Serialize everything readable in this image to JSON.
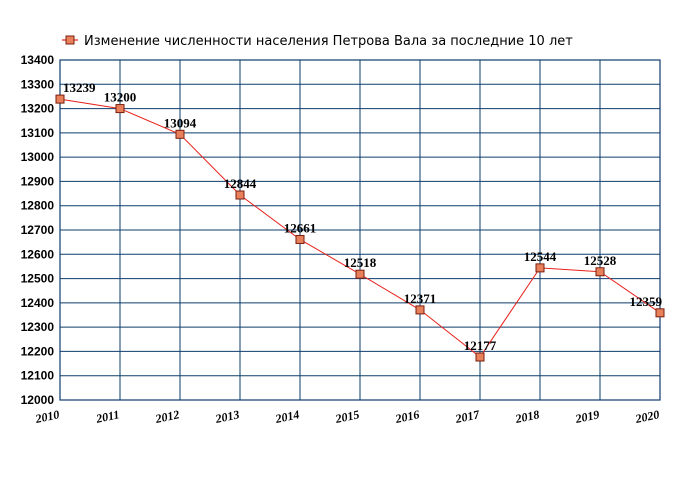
{
  "colors": {
    "line": "#e8211b",
    "marker_fill": "#e8805c",
    "marker_stroke": "#7a1e0e",
    "grid": "#0d3d6b",
    "frame": "#0d3d6b"
  },
  "chart_data": {
    "type": "line",
    "title": "Изменение численности населения Петрова Вала за последние 10 лет",
    "legend_position": "top-left",
    "grid": true,
    "categories": [
      "2010",
      "2011",
      "2012",
      "2013",
      "2014",
      "2015",
      "2016",
      "2017",
      "2018",
      "2019",
      "2020"
    ],
    "series": [
      {
        "name": "Изменение численности населения Петрова Вала за последние 10 лет",
        "values": [
          13239,
          13200,
          13094,
          12844,
          12661,
          12518,
          12371,
          12177,
          12544,
          12528,
          12359
        ]
      }
    ],
    "ylim": [
      12000,
      13400
    ],
    "yticks": [
      "12000",
      "12100",
      "12200",
      "12300",
      "12400",
      "12500",
      "12600",
      "12700",
      "12800",
      "12900",
      "13000",
      "13100",
      "13200",
      "13300",
      "13400"
    ],
    "xlabel": "",
    "ylabel": ""
  }
}
